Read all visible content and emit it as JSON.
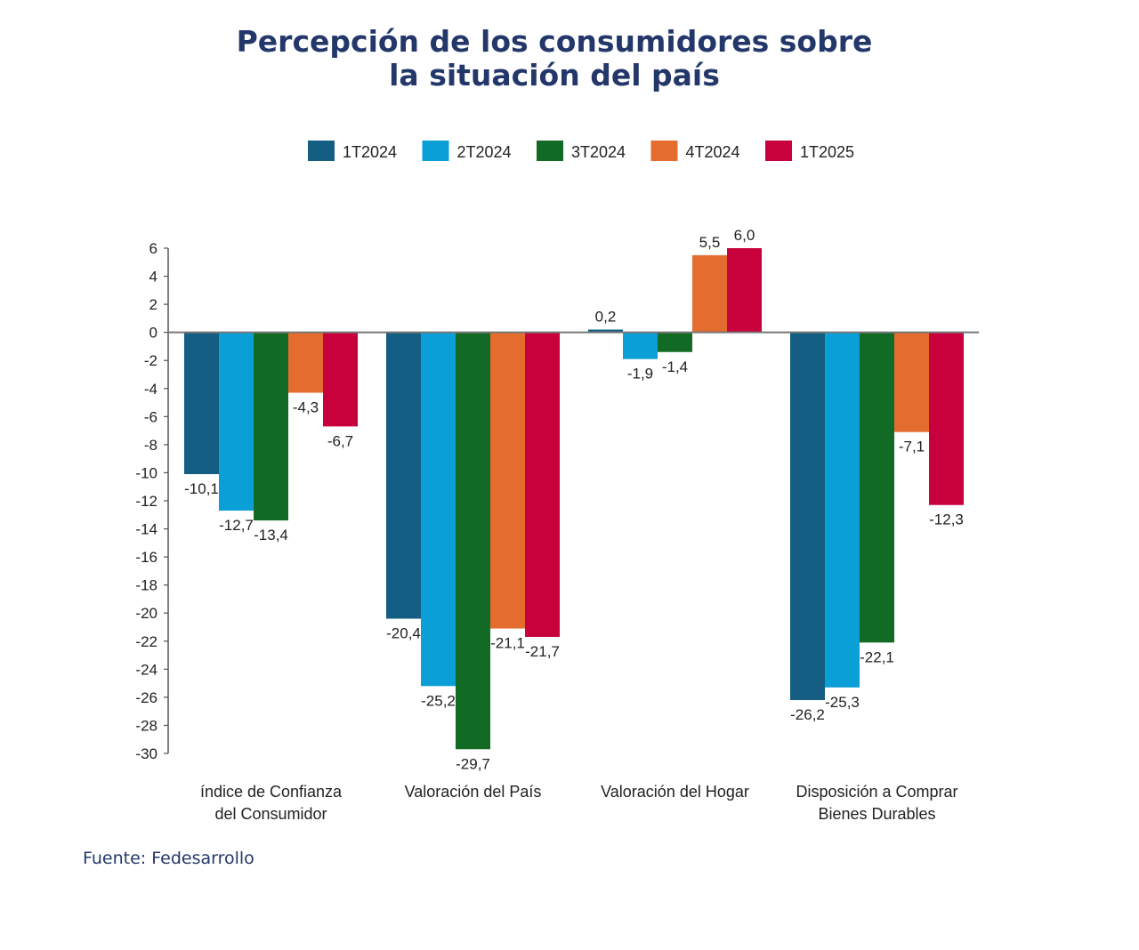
{
  "chart_data": {
    "type": "bar",
    "title": "Percepción de los consumidores sobre la situación del país",
    "title_lines": [
      "Percepción de los consumidores sobre",
      "la situación del país"
    ],
    "categories": [
      [
        "índice de Confianza",
        "del Consumidor"
      ],
      [
        "Valoración del País"
      ],
      [
        "Valoración del Hogar"
      ],
      [
        "Disposición a Comprar",
        "Bienes Durables"
      ]
    ],
    "series": [
      {
        "name": "1T2024",
        "color": "#135e82",
        "values": [
          -10.1,
          -20.4,
          0.2,
          -26.2
        ]
      },
      {
        "name": "2T2024",
        "color": "#0b9fd8",
        "values": [
          -12.7,
          -25.2,
          -1.9,
          -25.3
        ]
      },
      {
        "name": "3T2024",
        "color": "#126b24",
        "values": [
          -13.4,
          -29.7,
          -1.4,
          -22.1
        ]
      },
      {
        "name": "4T2024",
        "color": "#e46c2e",
        "values": [
          -4.3,
          -21.1,
          5.5,
          -7.1
        ]
      },
      {
        "name": "1T2025",
        "color": "#c8003c",
        "values": [
          -6.7,
          -21.7,
          6.0,
          -12.3
        ]
      }
    ],
    "ylim": [
      -30,
      6
    ],
    "ytick_step": 2,
    "decimal_separator": ",",
    "grid": false,
    "legend_position": "top",
    "xlabel": "",
    "ylabel": ""
  },
  "source": "Fuente: Fedesarrollo"
}
